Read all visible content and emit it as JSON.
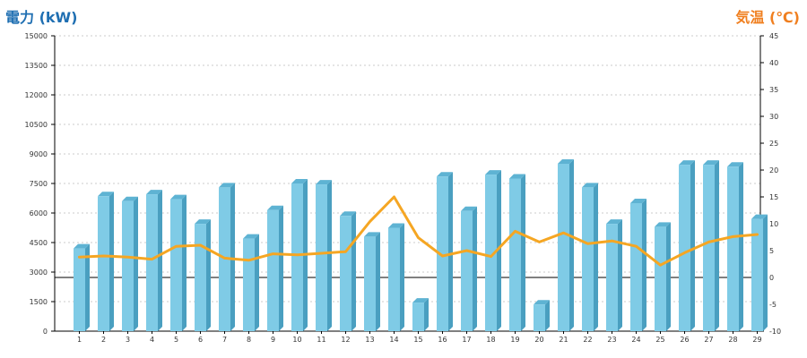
{
  "colors": {
    "left_title": "#1f6fb2",
    "right_title": "#f07f1f",
    "bar_front": "#7fcbe6",
    "bar_side": "#4a9fc0",
    "bar_top": "#5eb3d3",
    "line": "#f5a623",
    "grid": "#bbbbbb",
    "axis": "#000000"
  },
  "chart_data": {
    "type": "bar",
    "left_axis_title": "電力 (kW)",
    "right_axis_title": "気温 (℃)",
    "categories": [
      "1",
      "2",
      "3",
      "4",
      "5",
      "6",
      "7",
      "8",
      "9",
      "10",
      "11",
      "12",
      "13",
      "14",
      "15",
      "16",
      "17",
      "18",
      "19",
      "20",
      "21",
      "22",
      "23",
      "24",
      "25",
      "26",
      "27",
      "28",
      "29"
    ],
    "series": [
      {
        "axis": "left",
        "kind": "bar",
        "values": [
          4200,
          6850,
          6600,
          6950,
          6700,
          5450,
          7300,
          4700,
          6150,
          7500,
          7450,
          5850,
          4800,
          5250,
          1450,
          7850,
          6100,
          7950,
          7750,
          1350,
          8500,
          7300,
          5450,
          6500,
          5300,
          8450,
          8450,
          8350,
          5700
        ]
      },
      {
        "axis": "right",
        "kind": "line",
        "values": [
          3.8,
          4.0,
          3.8,
          3.4,
          5.8,
          6.0,
          3.6,
          3.2,
          4.4,
          4.2,
          4.5,
          4.8,
          10.4,
          15.0,
          7.4,
          4.0,
          5.0,
          3.9,
          8.6,
          6.6,
          8.3,
          6.3,
          6.8,
          5.8,
          2.3,
          4.6,
          6.6,
          7.6,
          8.0
        ]
      }
    ],
    "left_axis": {
      "ylim": [
        0,
        15000
      ],
      "ticks": [
        "0",
        "1500",
        "3000",
        "4500",
        "6000",
        "7500",
        "9000",
        "10500",
        "12000",
        "13500",
        "15000"
      ]
    },
    "right_axis": {
      "ylim": [
        -10,
        45
      ],
      "ticks": [
        "-10",
        "-5",
        "0",
        "5",
        "10",
        "15",
        "20",
        "25",
        "30",
        "35",
        "40",
        "45"
      ]
    },
    "grid": true,
    "legend": "none"
  }
}
